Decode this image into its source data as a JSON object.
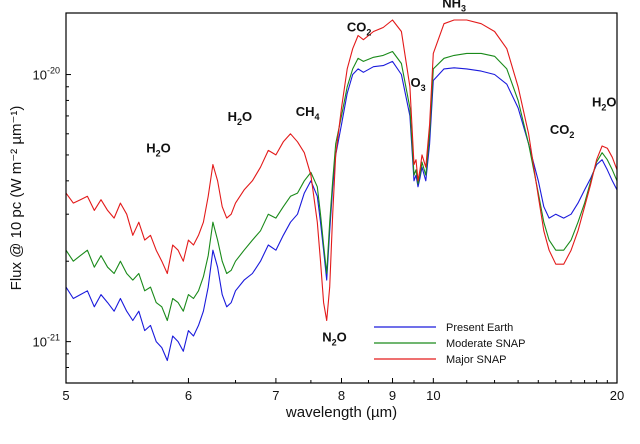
{
  "chart_data": {
    "type": "line",
    "title": "",
    "xlabel": "wavelength (µm)",
    "ylabel": "Flux @ 10 pc (W m⁻² µm⁻¹)",
    "xscale": "reciprocal",
    "yscale": "log",
    "xlim": [
      5,
      20
    ],
    "ylim": [
      7e-22,
      1.7e-20
    ],
    "grid": false,
    "legend": "bottom-right",
    "x_ticks": [
      "5",
      "6",
      "7",
      "8",
      "9",
      "10",
      "20"
    ],
    "x_tick_values": [
      5,
      6,
      7,
      8,
      9,
      10,
      20
    ],
    "y_ticks": [
      {
        "value": 1e-21,
        "base": "10",
        "exp": "-21"
      },
      {
        "value": 1e-20,
        "base": "10",
        "exp": "-20"
      }
    ],
    "annotations": [
      {
        "label": "H",
        "sub": "2",
        "rest": "O",
        "x": 5.72,
        "y": 5.1e-21
      },
      {
        "label": "H",
        "sub": "2",
        "rest": "O",
        "x": 6.55,
        "y": 6.7e-21
      },
      {
        "label": "CH",
        "sub": "4",
        "rest": "",
        "x": 7.45,
        "y": 7e-21
      },
      {
        "label": "CO",
        "sub": "2",
        "rest": "",
        "x": 8.32,
        "y": 1.45e-20
      },
      {
        "label": "O",
        "sub": "3",
        "rest": "",
        "x": 9.6,
        "y": 9e-21
      },
      {
        "label": "NH",
        "sub": "3",
        "rest": "",
        "x": 10.6,
        "y": 1.78e-20
      },
      {
        "label": "N",
        "sub": "2",
        "rest": "O",
        "x": 7.88,
        "y": 1e-21
      },
      {
        "label": "CO",
        "sub": "2",
        "rest": "",
        "x": 15.4,
        "y": 6e-21
      },
      {
        "label": "H",
        "sub": "2",
        "rest": "O",
        "x": 18.7,
        "y": 7.6e-21
      }
    ],
    "series": [
      {
        "name": "Present Earth",
        "color": "#1a1adc",
        "x": [
          5.0,
          5.05,
          5.1,
          5.15,
          5.2,
          5.25,
          5.3,
          5.35,
          5.4,
          5.45,
          5.5,
          5.55,
          5.6,
          5.65,
          5.7,
          5.75,
          5.8,
          5.85,
          5.9,
          5.95,
          6.0,
          6.05,
          6.1,
          6.15,
          6.2,
          6.25,
          6.3,
          6.35,
          6.4,
          6.45,
          6.5,
          6.6,
          6.7,
          6.8,
          6.9,
          7.0,
          7.1,
          7.2,
          7.3,
          7.4,
          7.5,
          7.6,
          7.65,
          7.7,
          7.75,
          7.8,
          7.85,
          7.9,
          8.0,
          8.1,
          8.2,
          8.3,
          8.4,
          8.6,
          8.8,
          9.0,
          9.2,
          9.4,
          9.5,
          9.55,
          9.6,
          9.65,
          9.7,
          9.8,
          9.9,
          10.0,
          10.3,
          10.6,
          11.0,
          11.5,
          12.0,
          12.5,
          13.0,
          13.5,
          14.0,
          14.3,
          14.6,
          15.0,
          15.5,
          16.0,
          16.5,
          17.0,
          17.5,
          18.0,
          18.5,
          19.0,
          19.5,
          20.0
        ],
        "values": [
          1.6e-21,
          1.45e-21,
          1.5e-21,
          1.55e-21,
          1.35e-21,
          1.5e-21,
          1.4e-21,
          1.3e-21,
          1.45e-21,
          1.3e-21,
          1.2e-21,
          1.3e-21,
          1.1e-21,
          1.15e-21,
          1e-21,
          9.5e-22,
          8.5e-22,
          1.05e-21,
          1e-21,
          9.2e-22,
          1.1e-21,
          1.05e-21,
          1.15e-21,
          1.3e-21,
          1.6e-21,
          2.2e-21,
          1.9e-21,
          1.5e-21,
          1.35e-21,
          1.4e-21,
          1.55e-21,
          1.7e-21,
          1.8e-21,
          2e-21,
          2.3e-21,
          2.2e-21,
          2.5e-21,
          2.8e-21,
          3e-21,
          3.6e-21,
          4e-21,
          3.5e-21,
          2.8e-21,
          2.2e-21,
          1.7e-21,
          2.6e-21,
          3.8e-21,
          5e-21,
          6.5e-21,
          8.5e-21,
          1e-20,
          1.05e-20,
          1.02e-20,
          1.07e-20,
          1.08e-20,
          1.12e-20,
          1e-20,
          7e-21,
          4e-21,
          4.2e-21,
          3.8e-21,
          4.1e-21,
          4.5e-21,
          4e-21,
          5.5e-21,
          9.5e-21,
          1.05e-20,
          1.06e-20,
          1.05e-20,
          1.03e-20,
          1e-20,
          9.2e-21,
          7.5e-21,
          5.5e-21,
          4e-21,
          3.2e-21,
          2.9e-21,
          3e-21,
          2.9e-21,
          3e-21,
          3.3e-21,
          3.7e-21,
          4.1e-21,
          4.6e-21,
          4.8e-21,
          4.4e-21,
          4e-21,
          3.7e-21
        ]
      },
      {
        "name": "Moderate SNAP",
        "color": "#1a8a1a",
        "x": [
          5.0,
          5.05,
          5.1,
          5.15,
          5.2,
          5.25,
          5.3,
          5.35,
          5.4,
          5.45,
          5.5,
          5.55,
          5.6,
          5.65,
          5.7,
          5.75,
          5.8,
          5.85,
          5.9,
          5.95,
          6.0,
          6.05,
          6.1,
          6.15,
          6.2,
          6.25,
          6.3,
          6.35,
          6.4,
          6.45,
          6.5,
          6.6,
          6.7,
          6.8,
          6.9,
          7.0,
          7.1,
          7.2,
          7.3,
          7.4,
          7.5,
          7.6,
          7.65,
          7.7,
          7.75,
          7.8,
          7.85,
          7.9,
          8.0,
          8.1,
          8.2,
          8.3,
          8.4,
          8.6,
          8.8,
          9.0,
          9.2,
          9.4,
          9.5,
          9.55,
          9.6,
          9.65,
          9.7,
          9.8,
          9.9,
          10.0,
          10.3,
          10.6,
          11.0,
          11.5,
          12.0,
          12.5,
          13.0,
          13.5,
          14.0,
          14.3,
          14.6,
          15.0,
          15.5,
          16.0,
          16.5,
          17.0,
          17.5,
          18.0,
          18.5,
          19.0,
          19.5,
          20.0
        ],
        "values": [
          2.2e-21,
          2e-21,
          2.1e-21,
          2.2e-21,
          1.9e-21,
          2.1e-21,
          1.9e-21,
          1.8e-21,
          2e-21,
          1.8e-21,
          1.7e-21,
          1.8e-21,
          1.55e-21,
          1.6e-21,
          1.4e-21,
          1.35e-21,
          1.2e-21,
          1.45e-21,
          1.4e-21,
          1.3e-21,
          1.5e-21,
          1.45e-21,
          1.55e-21,
          1.75e-21,
          2.1e-21,
          2.8e-21,
          2.4e-21,
          2e-21,
          1.8e-21,
          1.85e-21,
          2e-21,
          2.2e-21,
          2.4e-21,
          2.6e-21,
          3e-21,
          2.9e-21,
          3.2e-21,
          3.5e-21,
          3.6e-21,
          4e-21,
          4.3e-21,
          3.8e-21,
          3e-21,
          2.3e-21,
          1.8e-21,
          2.8e-21,
          4e-21,
          5.5e-21,
          7e-21,
          9e-21,
          1.05e-20,
          1.15e-20,
          1.12e-20,
          1.16e-20,
          1.18e-20,
          1.22e-20,
          1.1e-20,
          7.5e-21,
          4.2e-21,
          4.4e-21,
          3.9e-21,
          4.2e-21,
          4.7e-21,
          4.2e-21,
          6e-21,
          1.05e-20,
          1.15e-20,
          1.18e-20,
          1.2e-20,
          1.2e-20,
          1.17e-20,
          1.05e-20,
          8e-21,
          5.5e-21,
          3.6e-21,
          2.8e-21,
          2.4e-21,
          2.2e-21,
          2.2e-21,
          2.4e-21,
          2.8e-21,
          3.3e-21,
          4e-21,
          4.7e-21,
          5.1e-21,
          4.8e-21,
          4.4e-21,
          4e-21
        ]
      },
      {
        "name": "Major SNAP",
        "color": "#e31a1a",
        "x": [
          5.0,
          5.05,
          5.1,
          5.15,
          5.2,
          5.25,
          5.3,
          5.35,
          5.4,
          5.45,
          5.5,
          5.55,
          5.6,
          5.65,
          5.7,
          5.75,
          5.8,
          5.85,
          5.9,
          5.95,
          6.0,
          6.05,
          6.1,
          6.15,
          6.2,
          6.25,
          6.3,
          6.35,
          6.4,
          6.45,
          6.5,
          6.6,
          6.7,
          6.8,
          6.9,
          7.0,
          7.1,
          7.2,
          7.3,
          7.4,
          7.5,
          7.6,
          7.65,
          7.7,
          7.75,
          7.8,
          7.85,
          7.9,
          8.0,
          8.1,
          8.2,
          8.3,
          8.4,
          8.6,
          8.8,
          9.0,
          9.2,
          9.4,
          9.5,
          9.55,
          9.6,
          9.65,
          9.7,
          9.8,
          9.9,
          10.0,
          10.3,
          10.6,
          11.0,
          11.5,
          12.0,
          12.5,
          13.0,
          13.5,
          14.0,
          14.3,
          14.6,
          15.0,
          15.5,
          16.0,
          16.5,
          17.0,
          17.5,
          18.0,
          18.5,
          19.0,
          19.5,
          20.0
        ],
        "values": [
          3.6e-21,
          3.3e-21,
          3.4e-21,
          3.5e-21,
          3.1e-21,
          3.4e-21,
          3.1e-21,
          2.9e-21,
          3.3e-21,
          3e-21,
          2.5e-21,
          2.8e-21,
          2.4e-21,
          2.5e-21,
          2.2e-21,
          2e-21,
          1.8e-21,
          2.3e-21,
          2.2e-21,
          2e-21,
          2.4e-21,
          2.3e-21,
          2.5e-21,
          2.8e-21,
          3.5e-21,
          4.6e-21,
          4e-21,
          3.2e-21,
          2.9e-21,
          3e-21,
          3.3e-21,
          3.7e-21,
          4e-21,
          4.5e-21,
          5.2e-21,
          5e-21,
          5.6e-21,
          6e-21,
          5.6e-21,
          5.1e-21,
          4.2e-21,
          2.8e-21,
          2e-21,
          1.4e-21,
          1.2e-21,
          1.6e-21,
          3e-21,
          5e-21,
          7.5e-21,
          1.05e-20,
          1.25e-20,
          1.4e-20,
          1.35e-20,
          1.45e-20,
          1.5e-20,
          1.6e-20,
          1.45e-20,
          9e-21,
          4.6e-21,
          4.8e-21,
          4e-21,
          4.4e-21,
          5e-21,
          4.5e-21,
          6.5e-21,
          1.2e-20,
          1.55e-20,
          1.6e-20,
          1.6e-20,
          1.55e-20,
          1.45e-20,
          1.25e-20,
          9e-21,
          6e-21,
          3.5e-21,
          2.6e-21,
          2.2e-21,
          1.95e-21,
          1.95e-21,
          2.2e-21,
          2.6e-21,
          3.2e-21,
          3.9e-21,
          4.8e-21,
          5.4e-21,
          5.3e-21,
          4.9e-21,
          4.4e-21
        ]
      }
    ]
  }
}
